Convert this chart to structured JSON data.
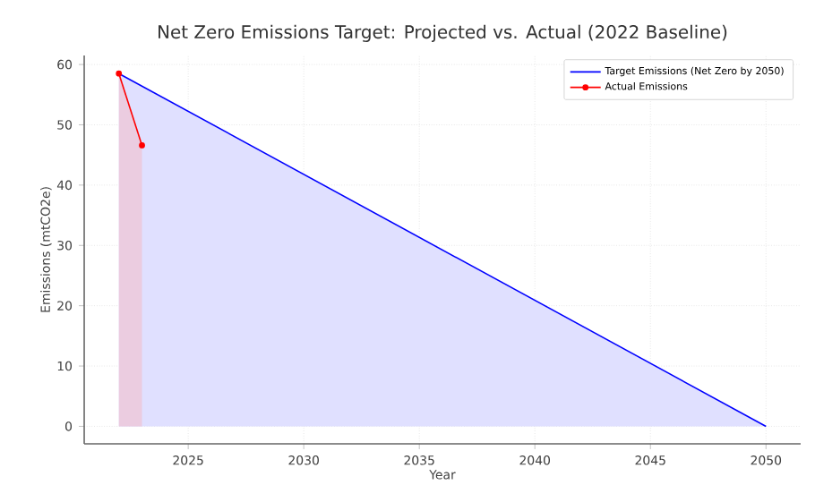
{
  "chart_data": {
    "type": "area",
    "title": "Net Zero Emissions Target: Projected vs. Actual (2022 Baseline)",
    "xlabel": "Year",
    "ylabel": "Emissions (mtCO2e)",
    "series": [
      {
        "name": "Target Emissions (Net Zero by 2050)",
        "color": "#0000ff",
        "x": [
          2022,
          2050
        ],
        "values": [
          58.5,
          0
        ],
        "marker": "none"
      },
      {
        "name": "Actual Emissions",
        "color": "#ff0000",
        "x": [
          2022,
          2023
        ],
        "values": [
          58.5,
          46.6
        ],
        "marker": "circle"
      }
    ],
    "xlim": [
      2020.5,
      2051.5
    ],
    "ylim": [
      -2.9,
      61.5
    ],
    "xticks": [
      2025,
      2030,
      2035,
      2040,
      2045,
      2050
    ],
    "yticks": [
      0,
      10,
      20,
      30,
      40,
      50,
      60
    ],
    "grid": true,
    "legend": "top right"
  }
}
